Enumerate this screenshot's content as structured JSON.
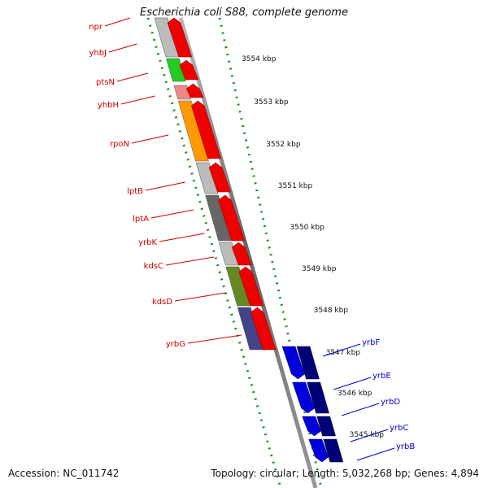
{
  "title": "Escherichia coli S88, complete genome",
  "accession": "Accession: NC_011742",
  "summary": "Topology: circular; Length: 5,032,268 bp; Genes: 4,894",
  "colors": {
    "forward_gene": "#ee0000",
    "reverse_gene": "#0000dd",
    "forward_label": "#cc0000",
    "reverse_label": "#0000cc",
    "backbone": "#888888",
    "tick": "#228b22"
  },
  "scale_labels": [
    "3554 kbp",
    "3553 kbp",
    "3552 kbp",
    "3551 kbp",
    "3550 kbp",
    "3549 kbp",
    "3548 kbp",
    "3547 kbp",
    "3546 kbp",
    "3545 kbp"
  ],
  "forward_genes": [
    "npr",
    "yhbJ",
    "ptsN",
    "yhbH",
    "rpoN",
    "lptB",
    "lptA",
    "yrbK",
    "kdsC",
    "kdsD",
    "yrbG"
  ],
  "reverse_genes": [
    "yrbF",
    "yrbE",
    "yrbD",
    "yrbC",
    "yrbB"
  ]
}
